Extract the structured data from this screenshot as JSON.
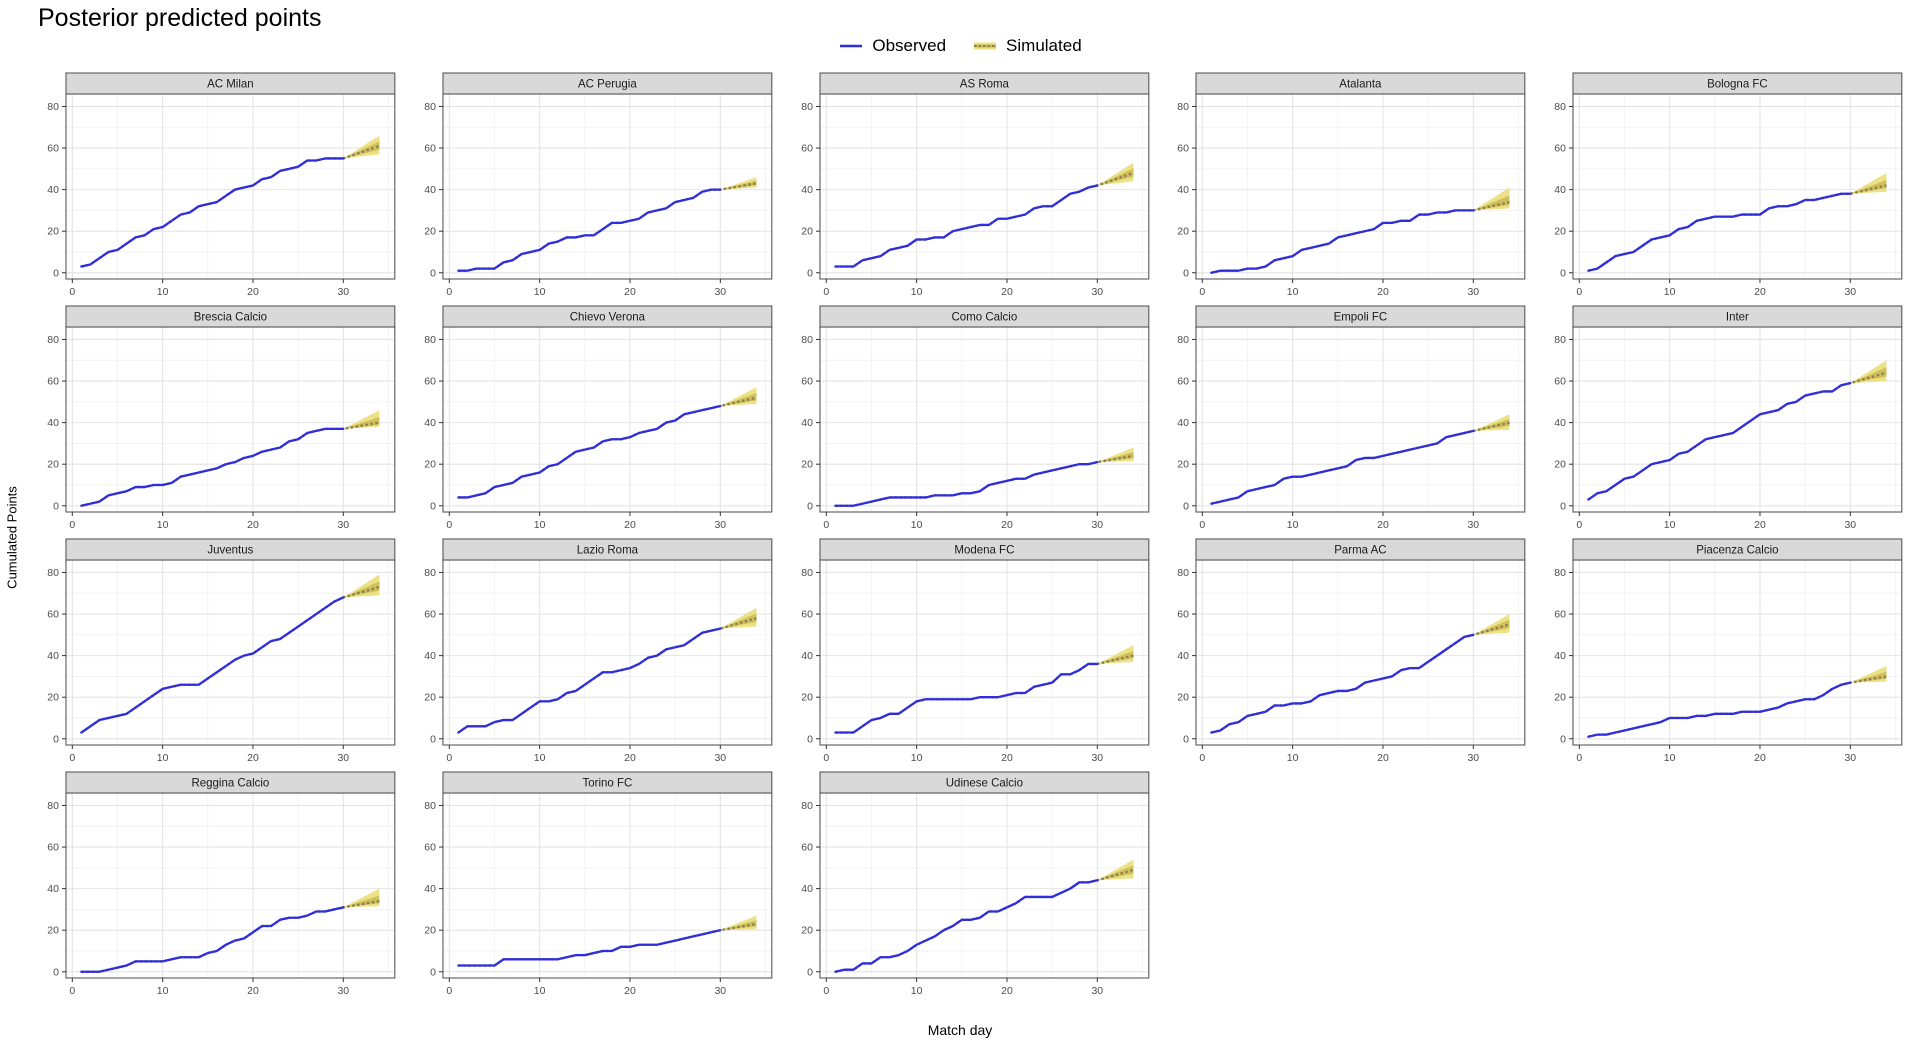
{
  "title": "Posterior predicted points",
  "legend": {
    "observed_label": "Observed",
    "simulated_label": "Simulated"
  },
  "axes": {
    "x_label": "Match day",
    "y_label": "Cumulated Points",
    "x_ticks": [
      0,
      10,
      20,
      30
    ],
    "x_minor_ticks": [
      5,
      15,
      25,
      35
    ],
    "y_ticks": [
      0,
      20,
      40,
      60,
      80
    ],
    "y_minor_ticks": [
      10,
      30,
      50,
      70
    ],
    "x_domain": [
      1,
      34
    ],
    "y_domain": [
      0,
      80
    ]
  },
  "colors": {
    "observed_line": "#2E2EDE",
    "sim_ribbon_outer": "#EBDF7E",
    "sim_ribbon_inner": "#CDBC55",
    "sim_median_line": "#8C8153",
    "strip_bg": "#D9D9D9",
    "strip_border": "#595959",
    "panel_border": "#595959",
    "grid_major": "#E4E4E4",
    "grid_minor": "#F2F2F2",
    "tick_text": "#4D4D4D",
    "tick_mark": "#333333"
  },
  "chart_data": {
    "type": "line",
    "description": "Cumulative points per match day; observed = days 1-30 (blue line), simulated posterior prediction wedge = days 30-34 (outer 90% band, inner 50% band, dashed median).",
    "observed_day_start": 1,
    "facets": [
      {
        "team": "AC Milan",
        "observed": [
          3,
          4,
          7,
          10,
          11,
          14,
          17,
          18,
          21,
          22,
          25,
          28,
          29,
          32,
          33,
          34,
          37,
          40,
          41,
          42,
          45,
          46,
          49,
          50,
          51,
          54,
          54,
          55,
          55,
          55
        ],
        "simulated": {
          "day_start": 30,
          "day_end": 34,
          "median_end": 61,
          "lower_end": 57,
          "upper_end": 66
        }
      },
      {
        "team": "AC Perugia",
        "observed": [
          1,
          1,
          2,
          2,
          2,
          5,
          6,
          9,
          10,
          11,
          14,
          15,
          17,
          17,
          18,
          18,
          21,
          24,
          24,
          25,
          26,
          29,
          30,
          31,
          34,
          35,
          36,
          39,
          40,
          40
        ],
        "simulated": {
          "day_start": 30,
          "day_end": 34,
          "median_end": 43,
          "lower_end": 41,
          "upper_end": 46
        }
      },
      {
        "team": "AS Roma",
        "observed": [
          3,
          3,
          3,
          6,
          7,
          8,
          11,
          12,
          13,
          16,
          16,
          17,
          17,
          20,
          21,
          22,
          23,
          23,
          26,
          26,
          27,
          28,
          31,
          32,
          32,
          35,
          38,
          39,
          41,
          42
        ],
        "simulated": {
          "day_start": 30,
          "day_end": 34,
          "median_end": 48,
          "lower_end": 44,
          "upper_end": 53
        }
      },
      {
        "team": "Atalanta",
        "observed": [
          0,
          1,
          1,
          1,
          2,
          2,
          3,
          6,
          7,
          8,
          11,
          12,
          13,
          14,
          17,
          18,
          19,
          20,
          21,
          24,
          24,
          25,
          25,
          28,
          28,
          29,
          29,
          30,
          30,
          30
        ],
        "simulated": {
          "day_start": 30,
          "day_end": 34,
          "median_end": 34,
          "lower_end": 31,
          "upper_end": 41
        }
      },
      {
        "team": "Bologna FC",
        "observed": [
          1,
          2,
          5,
          8,
          9,
          10,
          13,
          16,
          17,
          18,
          21,
          22,
          25,
          26,
          27,
          27,
          27,
          28,
          28,
          28,
          31,
          32,
          32,
          33,
          35,
          35,
          36,
          37,
          38,
          38
        ],
        "simulated": {
          "day_start": 30,
          "day_end": 34,
          "median_end": 42,
          "lower_end": 39,
          "upper_end": 48
        }
      },
      {
        "team": "Brescia Calcio",
        "observed": [
          0,
          1,
          2,
          5,
          6,
          7,
          9,
          9,
          10,
          10,
          11,
          14,
          15,
          16,
          17,
          18,
          20,
          21,
          23,
          24,
          26,
          27,
          28,
          31,
          32,
          35,
          36,
          37,
          37,
          37
        ],
        "simulated": {
          "day_start": 30,
          "day_end": 34,
          "median_end": 40,
          "lower_end": 38,
          "upper_end": 46
        }
      },
      {
        "team": "Chievo Verona",
        "observed": [
          4,
          4,
          5,
          6,
          9,
          10,
          11,
          14,
          15,
          16,
          19,
          20,
          23,
          26,
          27,
          28,
          31,
          32,
          32,
          33,
          35,
          36,
          37,
          40,
          41,
          44,
          45,
          46,
          47,
          48
        ],
        "simulated": {
          "day_start": 30,
          "day_end": 34,
          "median_end": 52,
          "lower_end": 49,
          "upper_end": 57
        }
      },
      {
        "team": "Como Calcio",
        "observed": [
          0,
          0,
          0,
          1,
          2,
          3,
          4,
          4,
          4,
          4,
          4,
          5,
          5,
          5,
          6,
          6,
          7,
          10,
          11,
          12,
          13,
          13,
          15,
          16,
          17,
          18,
          19,
          20,
          20,
          21
        ],
        "simulated": {
          "day_start": 30,
          "day_end": 34,
          "median_end": 24,
          "lower_end": 21.5,
          "upper_end": 28
        }
      },
      {
        "team": "Empoli FC",
        "observed": [
          1,
          2,
          3,
          4,
          7,
          8,
          9,
          10,
          13,
          14,
          14,
          15,
          16,
          17,
          18,
          19,
          22,
          23,
          23,
          24,
          25,
          26,
          27,
          28,
          29,
          30,
          33,
          34,
          35,
          36
        ],
        "simulated": {
          "day_start": 30,
          "day_end": 34,
          "median_end": 40,
          "lower_end": 36.5,
          "upper_end": 44
        }
      },
      {
        "team": "Inter",
        "observed": [
          3,
          6,
          7,
          10,
          13,
          14,
          17,
          20,
          21,
          22,
          25,
          26,
          29,
          32,
          33,
          34,
          35,
          38,
          41,
          44,
          45,
          46,
          49,
          50,
          53,
          54,
          55,
          55,
          58,
          59
        ],
        "simulated": {
          "day_start": 30,
          "day_end": 34,
          "median_end": 64,
          "lower_end": 60,
          "upper_end": 70
        }
      },
      {
        "team": "Juventus",
        "observed": [
          3,
          6,
          9,
          10,
          11,
          12,
          15,
          18,
          21,
          24,
          25,
          26,
          26,
          26,
          29,
          32,
          35,
          38,
          40,
          41,
          44,
          47,
          48,
          51,
          54,
          57,
          60,
          63,
          66,
          68
        ],
        "simulated": {
          "day_start": 30,
          "day_end": 34,
          "median_end": 73,
          "lower_end": 69,
          "upper_end": 79
        }
      },
      {
        "team": "Lazio Roma",
        "observed": [
          3,
          6,
          6,
          6,
          8,
          9,
          9,
          12,
          15,
          18,
          18,
          19,
          22,
          23,
          26,
          29,
          32,
          32,
          33,
          34,
          36,
          39,
          40,
          43,
          44,
          45,
          48,
          51,
          52,
          53
        ],
        "simulated": {
          "day_start": 30,
          "day_end": 34,
          "median_end": 58,
          "lower_end": 54,
          "upper_end": 63
        }
      },
      {
        "team": "Modena FC",
        "observed": [
          3,
          3,
          3,
          6,
          9,
          10,
          12,
          12,
          15,
          18,
          19,
          19,
          19,
          19,
          19,
          19,
          20,
          20,
          20,
          21,
          22,
          22,
          25,
          26,
          27,
          31,
          31,
          33,
          36,
          36
        ],
        "simulated": {
          "day_start": 30,
          "day_end": 34,
          "median_end": 40,
          "lower_end": 37,
          "upper_end": 45
        }
      },
      {
        "team": "Parma AC",
        "observed": [
          3,
          4,
          7,
          8,
          11,
          12,
          13,
          16,
          16,
          17,
          17,
          18,
          21,
          22,
          23,
          23,
          24,
          27,
          28,
          29,
          30,
          33,
          34,
          34,
          37,
          40,
          43,
          46,
          49,
          50
        ],
        "simulated": {
          "day_start": 30,
          "day_end": 34,
          "median_end": 55,
          "lower_end": 51,
          "upper_end": 60
        }
      },
      {
        "team": "Piacenza Calcio",
        "observed": [
          1,
          2,
          2,
          3,
          4,
          5,
          6,
          7,
          8,
          10,
          10,
          10,
          11,
          11,
          12,
          12,
          12,
          13,
          13,
          13,
          14,
          15,
          17,
          18,
          19,
          19,
          21,
          24,
          26,
          27
        ],
        "simulated": {
          "day_start": 30,
          "day_end": 34,
          "median_end": 30,
          "lower_end": 27.5,
          "upper_end": 35
        }
      },
      {
        "team": "Reggina Calcio",
        "observed": [
          0,
          0,
          0,
          1,
          2,
          3,
          5,
          5,
          5,
          5,
          6,
          7,
          7,
          7,
          9,
          10,
          13,
          15,
          16,
          19,
          22,
          22,
          25,
          26,
          26,
          27,
          29,
          29,
          30,
          31
        ],
        "simulated": {
          "day_start": 30,
          "day_end": 34,
          "median_end": 34,
          "lower_end": 31.5,
          "upper_end": 40
        }
      },
      {
        "team": "Torino FC",
        "observed": [
          3,
          3,
          3,
          3,
          3,
          6,
          6,
          6,
          6,
          6,
          6,
          6,
          7,
          8,
          8,
          9,
          10,
          10,
          12,
          12,
          13,
          13,
          13,
          14,
          15,
          16,
          17,
          18,
          19,
          20
        ],
        "simulated": {
          "day_start": 30,
          "day_end": 34,
          "median_end": 23,
          "lower_end": 20.5,
          "upper_end": 27
        }
      },
      {
        "team": "Udinese Calcio",
        "observed": [
          0,
          1,
          1,
          4,
          4,
          7,
          7,
          8,
          10,
          13,
          15,
          17,
          20,
          22,
          25,
          25,
          26,
          29,
          29,
          31,
          33,
          36,
          36,
          36,
          36,
          38,
          40,
          43,
          43,
          44
        ],
        "simulated": {
          "day_start": 30,
          "day_end": 34,
          "median_end": 49,
          "lower_end": 45,
          "upper_end": 54
        }
      }
    ]
  }
}
